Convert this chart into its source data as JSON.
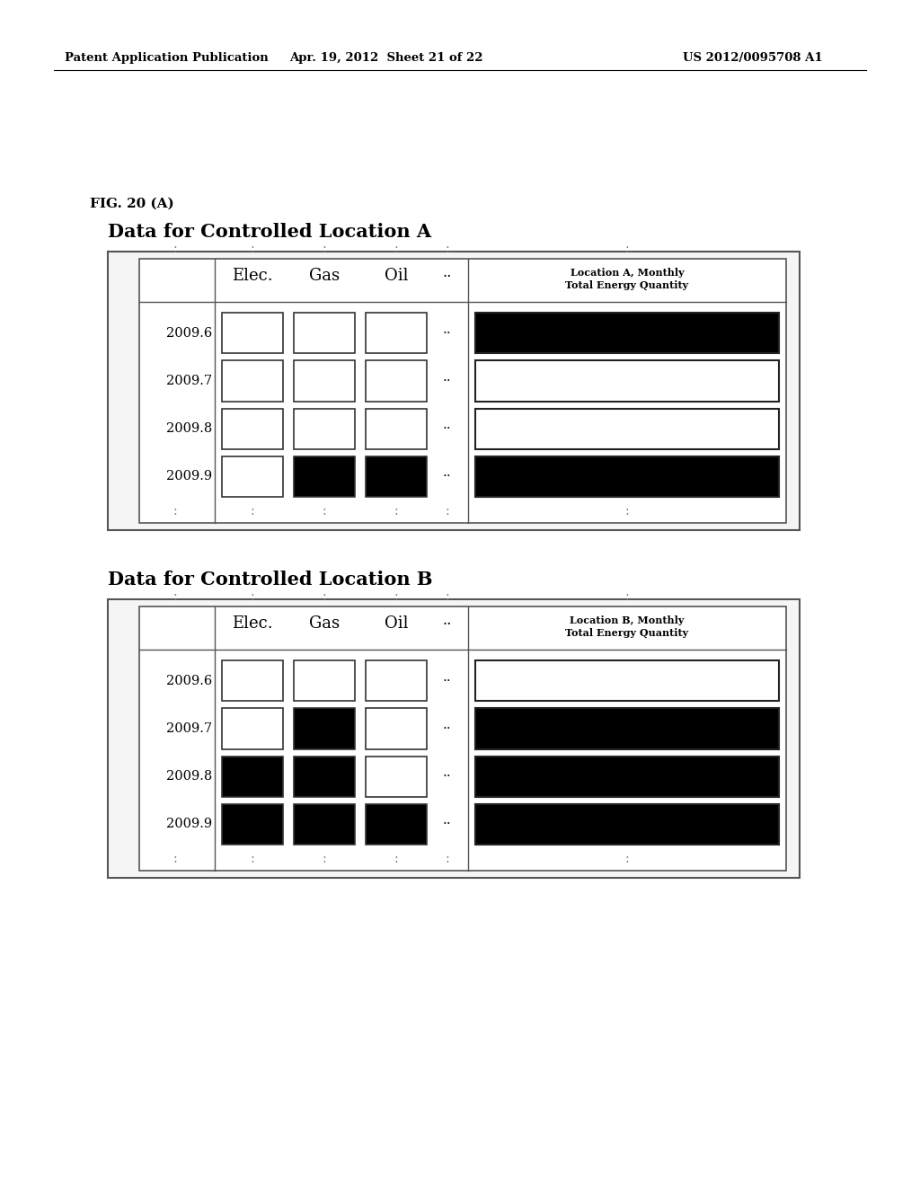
{
  "header_left": "Patent Application Publication",
  "header_center": "Apr. 19, 2012  Sheet 21 of 22",
  "header_right": "US 2012/0095708 A1",
  "fig_label": "FIG. 20 (A)",
  "section_A_title": "Data for Controlled Location A",
  "section_B_title": "Data for Controlled Location B",
  "right_col_header_A": "Location A, Monthly\nTotal Energy Quantity",
  "right_col_header_B": "Location B, Monthly\nTotal Energy Quantity",
  "row_labels": [
    "2009.6",
    "2009.7",
    "2009.8",
    "2009.9"
  ],
  "location_A_elec": [
    "white",
    "white",
    "white",
    "white"
  ],
  "location_A_gas": [
    "white",
    "white",
    "white",
    "black"
  ],
  "location_A_oil": [
    "white",
    "white",
    "white",
    "black"
  ],
  "location_A_total": [
    "black",
    "white",
    "white",
    "black"
  ],
  "location_B_elec": [
    "white",
    "white",
    "black",
    "black"
  ],
  "location_B_gas": [
    "white",
    "black",
    "black",
    "black"
  ],
  "location_B_oil": [
    "white",
    "white",
    "white",
    "black"
  ],
  "location_B_total": [
    "white",
    "black",
    "black",
    "black"
  ],
  "background_color": "#ffffff"
}
